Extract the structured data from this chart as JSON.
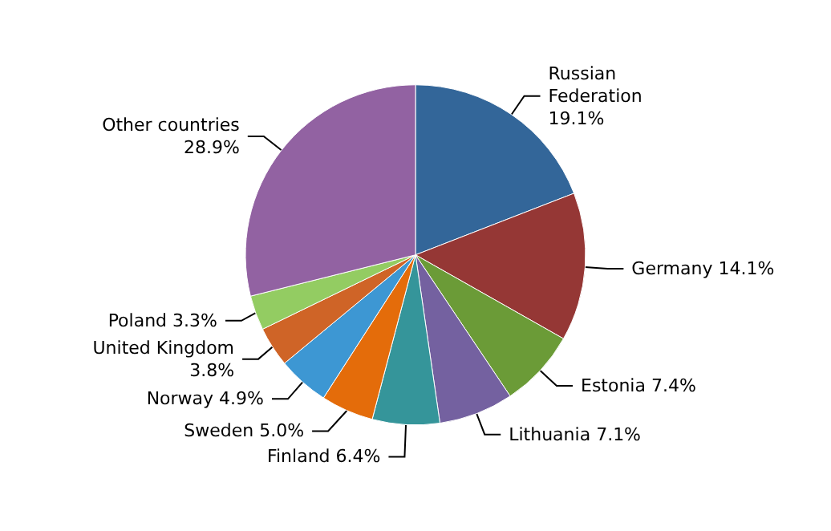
{
  "chart_data": {
    "type": "pie",
    "categories": [
      "Russian Federation",
      "Germany",
      "Estonia",
      "Lithuania",
      "Finland",
      "Sweden",
      "Norway",
      "United Kingdom",
      "Poland",
      "Other countries"
    ],
    "values": [
      19.1,
      14.1,
      7.4,
      7.1,
      6.4,
      5.0,
      4.9,
      3.8,
      3.3,
      28.9
    ],
    "value_labels": [
      "19.1%",
      "14.1%",
      "7.4%",
      "7.1%",
      "6.4%",
      "5.0%",
      "4.9%",
      "3.8%",
      "3.3%",
      "28.9%"
    ],
    "colors": [
      "#336699",
      "#953735",
      "#6b9b37",
      "#7461a0",
      "#35959a",
      "#e46c0a",
      "#3d97d3",
      "#cf6427",
      "#93cc62",
      "#9262a2"
    ],
    "legend": false
  }
}
